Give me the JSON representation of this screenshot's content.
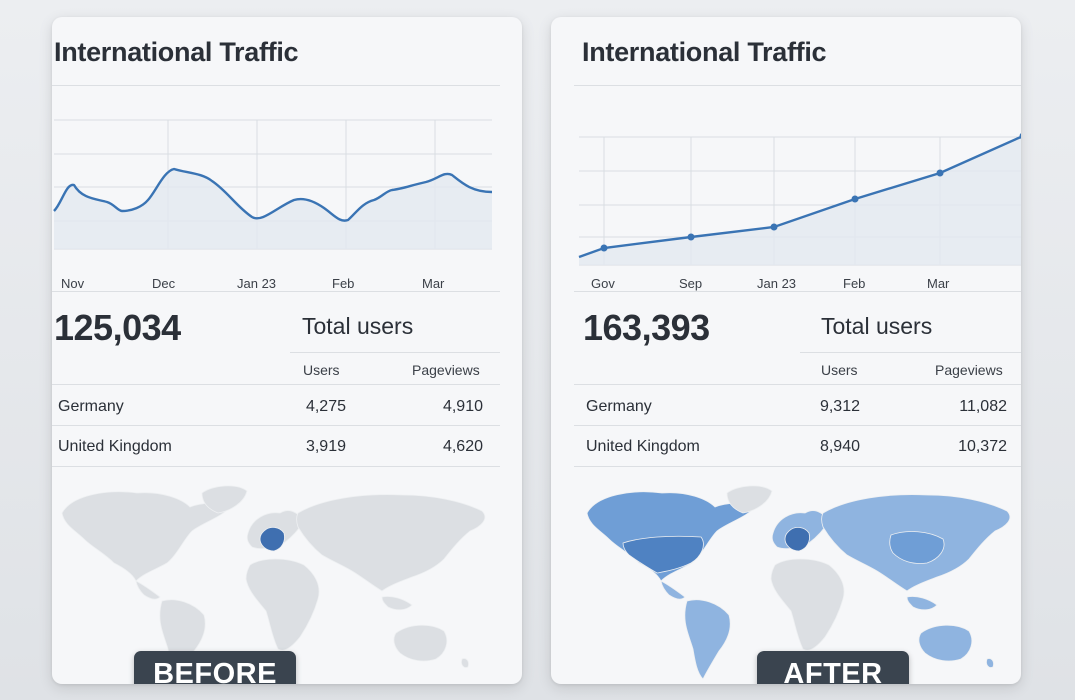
{
  "panels": [
    {
      "id": "before",
      "title": "International Traffic",
      "badge": "BEFORE",
      "chart": {
        "ticks": [
          "Nov",
          "Dec",
          "Jan 23",
          "Feb",
          "Mar"
        ]
      },
      "total_users": "125,034",
      "total_label": "Total users",
      "columns": [
        "Users",
        "Pageviews"
      ],
      "rows": [
        {
          "country": "Germany",
          "users": "4,275",
          "pageviews": "4,910"
        },
        {
          "country": "United Kingdom",
          "users": "3,919",
          "pageviews": "4,620"
        }
      ],
      "map_highlight": "Germany"
    },
    {
      "id": "after",
      "title": "International Traffic",
      "badge": "AFTER",
      "chart": {
        "ticks": [
          "Gov",
          "Sep",
          "Jan 23",
          "Feb",
          "Mar"
        ]
      },
      "total_users": "163,393",
      "total_label": "Total users",
      "columns": [
        "Users",
        "Pageviews"
      ],
      "rows": [
        {
          "country": "Germany",
          "users": "9,312",
          "pageviews": "11,082"
        },
        {
          "country": "United Kingdom",
          "users": "8,940",
          "pageviews": "10,372"
        }
      ],
      "map_highlight": "Worldwide"
    }
  ],
  "colors": {
    "line": "#3a74b4",
    "area": "#e3e8f0",
    "grid": "#d9dde3",
    "map_land": "#dcdfe3",
    "map_blue_light": "#8fb4e0",
    "map_blue_mid": "#6f9ed6",
    "map_blue_dark": "#3f6fb0"
  }
}
